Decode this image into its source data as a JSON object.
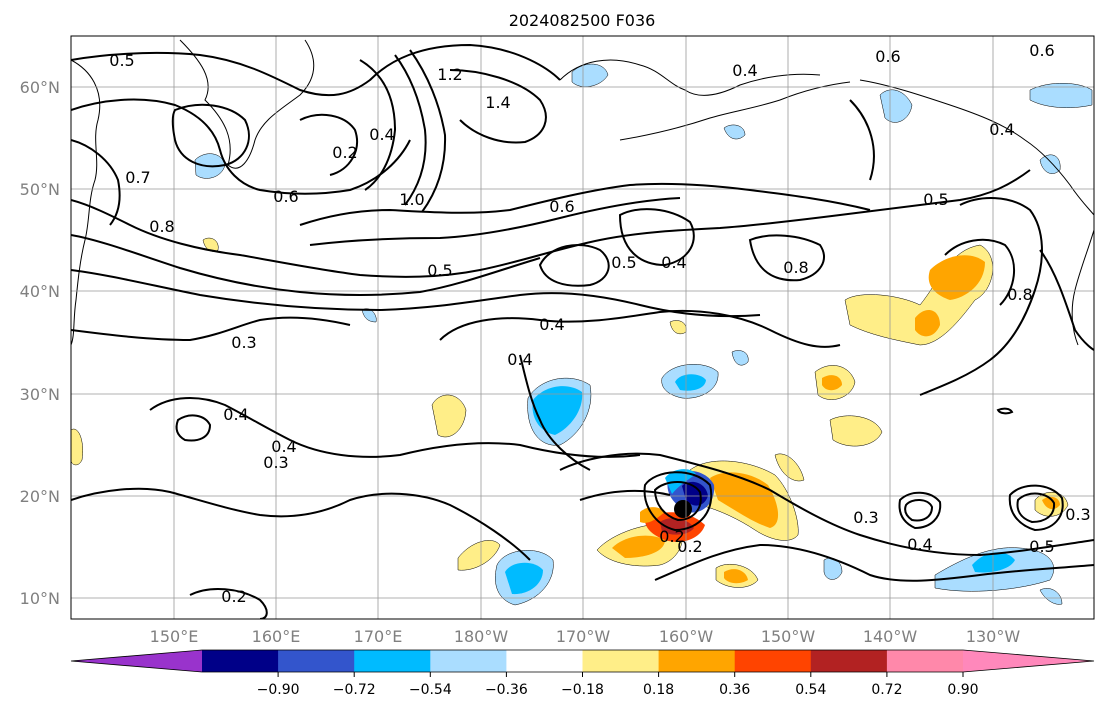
{
  "title": "2024082500 F036",
  "lat_labels": [
    "60°N",
    "50°N",
    "40°N",
    "30°N",
    "20°N",
    "10°N"
  ],
  "lon_labels": [
    "150°E",
    "160°E",
    "170°E",
    "180°W",
    "170°W",
    "160°W",
    "150°W",
    "140°W",
    "130°W"
  ],
  "colorbar": {
    "ticks": [
      "−0.90",
      "−0.72",
      "−0.54",
      "−0.36",
      "−0.18",
      "0.18",
      "0.36",
      "0.54",
      "0.72",
      "0.90"
    ],
    "colors": [
      "#9933cc",
      "#000088",
      "#3355cc",
      "#00bbff",
      "#aaddff",
      "#ffffff",
      "#ffee88",
      "#ffa500",
      "#ff4400",
      "#b22222",
      "#ff88aa",
      "#ff88bb"
    ]
  },
  "contour_labels": [
    "0.5",
    "0.6",
    "0.7",
    "0.8",
    "0.2",
    "0.4",
    "1.2",
    "1.4",
    "1.0",
    "0.6",
    "0.5",
    "0.4",
    "0.6",
    "0.4",
    "0.6",
    "0.5",
    "0.8",
    "0.3",
    "0.4",
    "0.4",
    "0.4",
    "0.3",
    "0.2",
    "0.5",
    "0.8",
    "0.4",
    "0.3",
    "0.2",
    "0.4",
    "0.5",
    "0.3",
    "0.4",
    "0.2"
  ]
}
